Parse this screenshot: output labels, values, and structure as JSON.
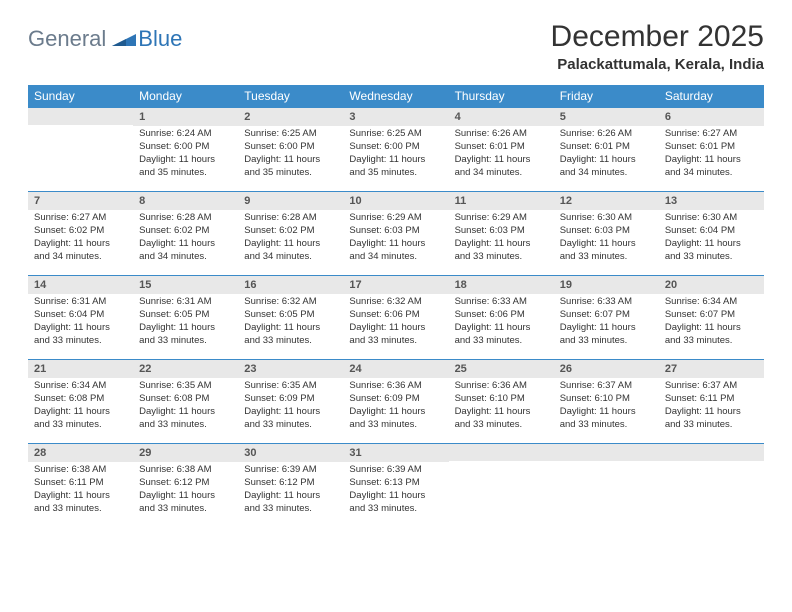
{
  "logo": {
    "general": "General",
    "blue": "Blue"
  },
  "title": "December 2025",
  "location": "Palackattumala, Kerala, India",
  "colors": {
    "header_bg": "#3b8bc9",
    "header_text": "#ffffff",
    "daynum_bg": "#e8e8e8",
    "border": "#3b8bc9",
    "logo_general": "#6b7b8c",
    "logo_blue": "#2e75b6"
  },
  "day_names": [
    "Sunday",
    "Monday",
    "Tuesday",
    "Wednesday",
    "Thursday",
    "Friday",
    "Saturday"
  ],
  "weeks": [
    [
      null,
      {
        "n": "1",
        "sr": "Sunrise: 6:24 AM",
        "ss": "Sunset: 6:00 PM",
        "d1": "Daylight: 11 hours",
        "d2": "and 35 minutes."
      },
      {
        "n": "2",
        "sr": "Sunrise: 6:25 AM",
        "ss": "Sunset: 6:00 PM",
        "d1": "Daylight: 11 hours",
        "d2": "and 35 minutes."
      },
      {
        "n": "3",
        "sr": "Sunrise: 6:25 AM",
        "ss": "Sunset: 6:00 PM",
        "d1": "Daylight: 11 hours",
        "d2": "and 35 minutes."
      },
      {
        "n": "4",
        "sr": "Sunrise: 6:26 AM",
        "ss": "Sunset: 6:01 PM",
        "d1": "Daylight: 11 hours",
        "d2": "and 34 minutes."
      },
      {
        "n": "5",
        "sr": "Sunrise: 6:26 AM",
        "ss": "Sunset: 6:01 PM",
        "d1": "Daylight: 11 hours",
        "d2": "and 34 minutes."
      },
      {
        "n": "6",
        "sr": "Sunrise: 6:27 AM",
        "ss": "Sunset: 6:01 PM",
        "d1": "Daylight: 11 hours",
        "d2": "and 34 minutes."
      }
    ],
    [
      {
        "n": "7",
        "sr": "Sunrise: 6:27 AM",
        "ss": "Sunset: 6:02 PM",
        "d1": "Daylight: 11 hours",
        "d2": "and 34 minutes."
      },
      {
        "n": "8",
        "sr": "Sunrise: 6:28 AM",
        "ss": "Sunset: 6:02 PM",
        "d1": "Daylight: 11 hours",
        "d2": "and 34 minutes."
      },
      {
        "n": "9",
        "sr": "Sunrise: 6:28 AM",
        "ss": "Sunset: 6:02 PM",
        "d1": "Daylight: 11 hours",
        "d2": "and 34 minutes."
      },
      {
        "n": "10",
        "sr": "Sunrise: 6:29 AM",
        "ss": "Sunset: 6:03 PM",
        "d1": "Daylight: 11 hours",
        "d2": "and 34 minutes."
      },
      {
        "n": "11",
        "sr": "Sunrise: 6:29 AM",
        "ss": "Sunset: 6:03 PM",
        "d1": "Daylight: 11 hours",
        "d2": "and 33 minutes."
      },
      {
        "n": "12",
        "sr": "Sunrise: 6:30 AM",
        "ss": "Sunset: 6:03 PM",
        "d1": "Daylight: 11 hours",
        "d2": "and 33 minutes."
      },
      {
        "n": "13",
        "sr": "Sunrise: 6:30 AM",
        "ss": "Sunset: 6:04 PM",
        "d1": "Daylight: 11 hours",
        "d2": "and 33 minutes."
      }
    ],
    [
      {
        "n": "14",
        "sr": "Sunrise: 6:31 AM",
        "ss": "Sunset: 6:04 PM",
        "d1": "Daylight: 11 hours",
        "d2": "and 33 minutes."
      },
      {
        "n": "15",
        "sr": "Sunrise: 6:31 AM",
        "ss": "Sunset: 6:05 PM",
        "d1": "Daylight: 11 hours",
        "d2": "and 33 minutes."
      },
      {
        "n": "16",
        "sr": "Sunrise: 6:32 AM",
        "ss": "Sunset: 6:05 PM",
        "d1": "Daylight: 11 hours",
        "d2": "and 33 minutes."
      },
      {
        "n": "17",
        "sr": "Sunrise: 6:32 AM",
        "ss": "Sunset: 6:06 PM",
        "d1": "Daylight: 11 hours",
        "d2": "and 33 minutes."
      },
      {
        "n": "18",
        "sr": "Sunrise: 6:33 AM",
        "ss": "Sunset: 6:06 PM",
        "d1": "Daylight: 11 hours",
        "d2": "and 33 minutes."
      },
      {
        "n": "19",
        "sr": "Sunrise: 6:33 AM",
        "ss": "Sunset: 6:07 PM",
        "d1": "Daylight: 11 hours",
        "d2": "and 33 minutes."
      },
      {
        "n": "20",
        "sr": "Sunrise: 6:34 AM",
        "ss": "Sunset: 6:07 PM",
        "d1": "Daylight: 11 hours",
        "d2": "and 33 minutes."
      }
    ],
    [
      {
        "n": "21",
        "sr": "Sunrise: 6:34 AM",
        "ss": "Sunset: 6:08 PM",
        "d1": "Daylight: 11 hours",
        "d2": "and 33 minutes."
      },
      {
        "n": "22",
        "sr": "Sunrise: 6:35 AM",
        "ss": "Sunset: 6:08 PM",
        "d1": "Daylight: 11 hours",
        "d2": "and 33 minutes."
      },
      {
        "n": "23",
        "sr": "Sunrise: 6:35 AM",
        "ss": "Sunset: 6:09 PM",
        "d1": "Daylight: 11 hours",
        "d2": "and 33 minutes."
      },
      {
        "n": "24",
        "sr": "Sunrise: 6:36 AM",
        "ss": "Sunset: 6:09 PM",
        "d1": "Daylight: 11 hours",
        "d2": "and 33 minutes."
      },
      {
        "n": "25",
        "sr": "Sunrise: 6:36 AM",
        "ss": "Sunset: 6:10 PM",
        "d1": "Daylight: 11 hours",
        "d2": "and 33 minutes."
      },
      {
        "n": "26",
        "sr": "Sunrise: 6:37 AM",
        "ss": "Sunset: 6:10 PM",
        "d1": "Daylight: 11 hours",
        "d2": "and 33 minutes."
      },
      {
        "n": "27",
        "sr": "Sunrise: 6:37 AM",
        "ss": "Sunset: 6:11 PM",
        "d1": "Daylight: 11 hours",
        "d2": "and 33 minutes."
      }
    ],
    [
      {
        "n": "28",
        "sr": "Sunrise: 6:38 AM",
        "ss": "Sunset: 6:11 PM",
        "d1": "Daylight: 11 hours",
        "d2": "and 33 minutes."
      },
      {
        "n": "29",
        "sr": "Sunrise: 6:38 AM",
        "ss": "Sunset: 6:12 PM",
        "d1": "Daylight: 11 hours",
        "d2": "and 33 minutes."
      },
      {
        "n": "30",
        "sr": "Sunrise: 6:39 AM",
        "ss": "Sunset: 6:12 PM",
        "d1": "Daylight: 11 hours",
        "d2": "and 33 minutes."
      },
      {
        "n": "31",
        "sr": "Sunrise: 6:39 AM",
        "ss": "Sunset: 6:13 PM",
        "d1": "Daylight: 11 hours",
        "d2": "and 33 minutes."
      },
      null,
      null,
      null
    ]
  ]
}
